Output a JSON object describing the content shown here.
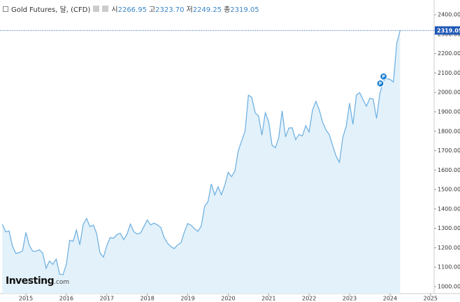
{
  "chart_data": {
    "type": "area",
    "title": "Gold Futures, 달, (CFD)",
    "ohlc": {
      "names": [
        "시",
        "고",
        "저",
        "종"
      ],
      "values": [
        2266.95,
        2323.7,
        2249.25,
        2319.05
      ],
      "value_labels": [
        "2266.95",
        "2323.70",
        "2249.25",
        "2319.05"
      ]
    },
    "last_label": "2319.05",
    "logo": {
      "name": "Investing",
      "suffix": ".com"
    },
    "x": [
      2014.417,
      2014.5,
      2014.583,
      2014.667,
      2014.75,
      2014.833,
      2014.917,
      2015,
      2015.083,
      2015.167,
      2015.25,
      2015.333,
      2015.417,
      2015.5,
      2015.583,
      2015.667,
      2015.75,
      2015.833,
      2015.917,
      2016,
      2016.083,
      2016.167,
      2016.25,
      2016.333,
      2016.417,
      2016.5,
      2016.583,
      2016.667,
      2016.75,
      2016.833,
      2016.917,
      2017,
      2017.083,
      2017.167,
      2017.25,
      2017.333,
      2017.417,
      2017.5,
      2017.583,
      2017.667,
      2017.75,
      2017.833,
      2017.917,
      2018,
      2018.083,
      2018.167,
      2018.25,
      2018.333,
      2018.417,
      2018.5,
      2018.583,
      2018.667,
      2018.75,
      2018.833,
      2018.917,
      2019,
      2019.083,
      2019.167,
      2019.25,
      2019.333,
      2019.417,
      2019.5,
      2019.583,
      2019.667,
      2019.75,
      2019.833,
      2019.917,
      2020,
      2020.083,
      2020.167,
      2020.25,
      2020.333,
      2020.417,
      2020.5,
      2020.583,
      2020.667,
      2020.75,
      2020.833,
      2020.917,
      2021,
      2021.083,
      2021.167,
      2021.25,
      2021.333,
      2021.417,
      2021.5,
      2021.583,
      2021.667,
      2021.75,
      2021.833,
      2021.917,
      2022,
      2022.083,
      2022.167,
      2022.25,
      2022.333,
      2022.417,
      2022.5,
      2022.583,
      2022.667,
      2022.75,
      2022.833,
      2022.917,
      2023,
      2023.083,
      2023.167,
      2023.25,
      2023.333,
      2023.417,
      2023.5,
      2023.583,
      2023.667,
      2023.75,
      2023.833,
      2023.917,
      2024,
      2024.083,
      2024.167,
      2024.25
    ],
    "series": [
      {
        "color": "#6aaee0",
        "fill": "#e2f1fa",
        "values": [
          1322,
          1282,
          1287,
          1210,
          1171,
          1175,
          1184,
          1279,
          1213,
          1183,
          1182,
          1190,
          1172,
          1095,
          1132,
          1115,
          1142,
          1065,
          1061,
          1116,
          1238,
          1234,
          1291,
          1215,
          1321,
          1351,
          1309,
          1317,
          1273,
          1173,
          1152,
          1211,
          1253,
          1249,
          1268,
          1275,
          1242,
          1270,
          1322,
          1283,
          1271,
          1276,
          1309,
          1343,
          1318,
          1327,
          1318,
          1305,
          1253,
          1224,
          1206,
          1196,
          1215,
          1226,
          1282,
          1325,
          1316,
          1298,
          1285,
          1311,
          1413,
          1437,
          1529,
          1472,
          1514,
          1473,
          1523,
          1589,
          1566,
          1596,
          1700,
          1751,
          1800,
          1986,
          1975,
          1895,
          1879,
          1780,
          1895,
          1850,
          1729,
          1715,
          1768,
          1905,
          1771,
          1817,
          1818,
          1757,
          1784,
          1776,
          1829,
          1796,
          1909,
          1954,
          1911,
          1848,
          1807,
          1782,
          1726,
          1672,
          1640,
          1769,
          1826,
          1945,
          1836,
          1986,
          1999,
          1963,
          1929,
          1970,
          1966,
          1866,
          1996,
          2057,
          2071,
          2067,
          2054,
          2254,
          2319.05
        ]
      }
    ],
    "annotations": [
      {
        "x": 2023.76,
        "y": 2046,
        "label": "P"
      },
      {
        "x": 2023.84,
        "y": 2082,
        "label": "P"
      }
    ],
    "xlim": [
      2014.36,
      2025.09
    ],
    "xticks": [
      2015,
      2016,
      2017,
      2018,
      2019,
      2020,
      2021,
      2022,
      2023,
      2024,
      2025
    ],
    "ylim": [
      964,
      2476
    ],
    "yticks": [
      {
        "value": 1000,
        "label": "1000.00"
      },
      {
        "value": 1100,
        "label": "1100.00"
      },
      {
        "value": 1200,
        "label": "1200.00"
      },
      {
        "value": 1300,
        "label": "1300.00"
      },
      {
        "value": 1400,
        "label": "1400.00"
      },
      {
        "value": 1500,
        "label": "1500.00"
      },
      {
        "value": 1600,
        "label": "1600.00"
      },
      {
        "value": 1700,
        "label": "1700.00"
      },
      {
        "value": 1800,
        "label": "1800.00"
      },
      {
        "value": 1900,
        "label": "1900.00"
      },
      {
        "value": 2000,
        "label": "2000.00"
      },
      {
        "value": 2100,
        "label": "2100.00"
      },
      {
        "value": 2200,
        "label": "2200.00"
      },
      {
        "value": 2300,
        "label": "2300.00"
      },
      {
        "value": 2400,
        "label": "2400.00"
      }
    ],
    "grid": false
  }
}
